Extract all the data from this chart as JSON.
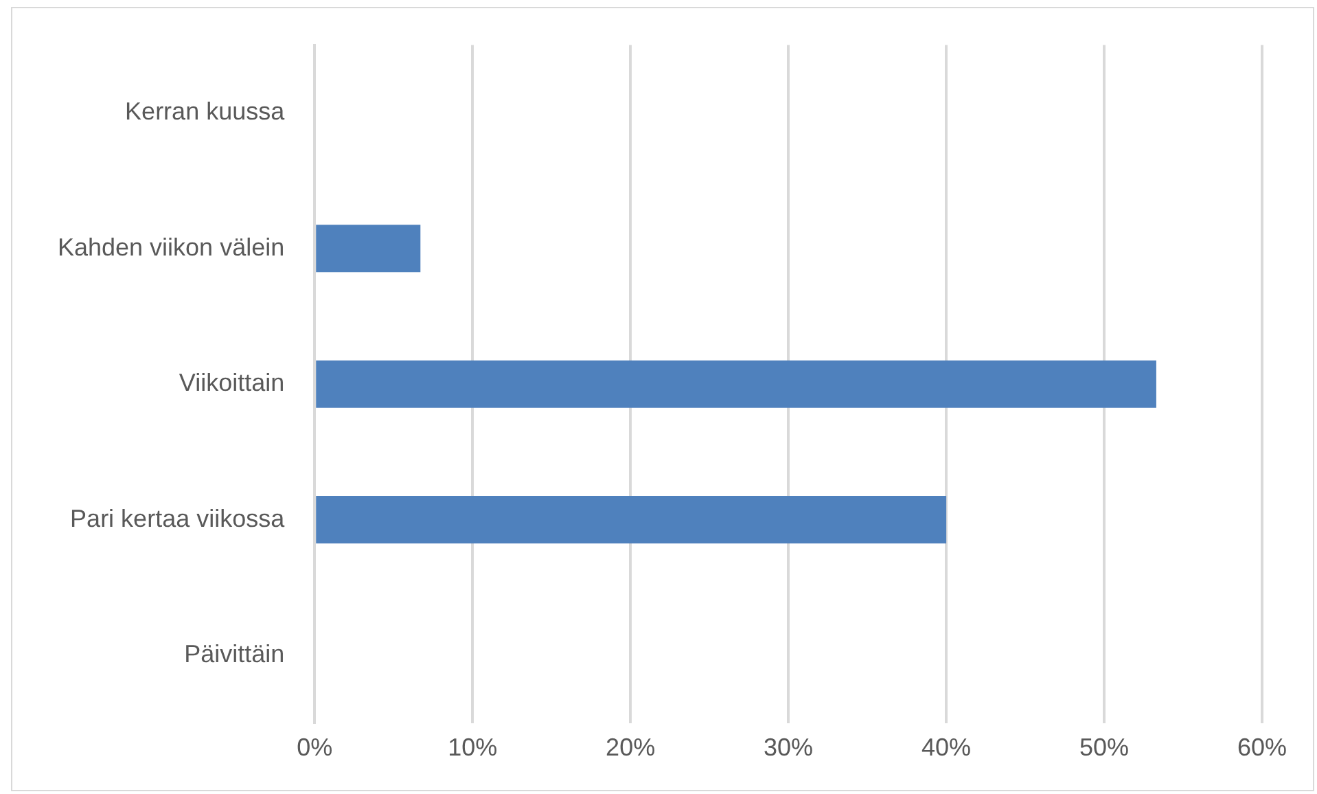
{
  "chart_data": {
    "type": "bar",
    "orientation": "horizontal",
    "categories": [
      "Kerran kuussa",
      "Kahden viikon välein",
      "Viikoittain",
      "Pari kertaa viikossa",
      "Päivittäin"
    ],
    "values": [
      0,
      6.7,
      53.3,
      40,
      0
    ],
    "color": "#4f81bd",
    "xlim": [
      0,
      60
    ],
    "xticks": [
      {
        "value": 0,
        "label": "0%"
      },
      {
        "value": 10,
        "label": "10%"
      },
      {
        "value": 20,
        "label": "20%"
      },
      {
        "value": 30,
        "label": "30%"
      },
      {
        "value": 40,
        "label": "40%"
      },
      {
        "value": 50,
        "label": "50%"
      },
      {
        "value": 60,
        "label": "60%"
      }
    ],
    "grid": "x",
    "legend": false
  }
}
